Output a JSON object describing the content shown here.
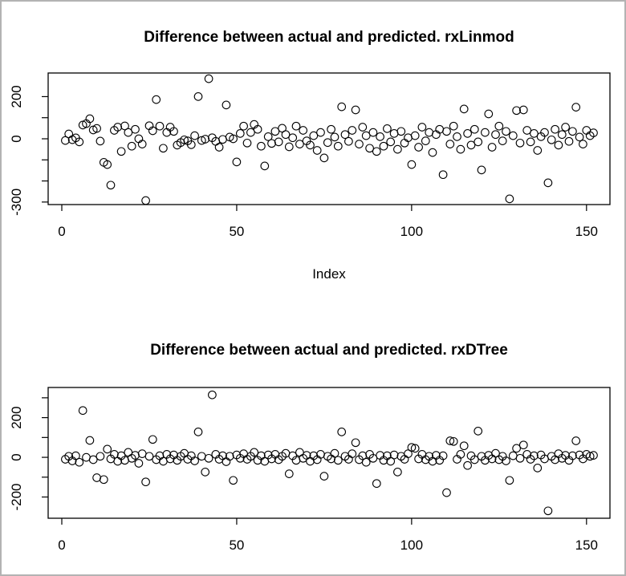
{
  "canvas": {
    "background": "#ffffff",
    "border_color": "#b3b3b3",
    "point_color": "#000000"
  },
  "chart_data": [
    {
      "type": "scatter",
      "title": "Difference between actual and predicted. rxLinmod",
      "xlabel": "Index",
      "ylabel": "",
      "marker": "open-circle",
      "grid": false,
      "legend": "none",
      "x_is_index": true,
      "xlim": [
        -3.9,
        156.7
      ],
      "ylim": [
        -312,
        312
      ],
      "xticks": [
        {
          "v": 0,
          "label": "0"
        },
        {
          "v": 50,
          "label": "50"
        },
        {
          "v": 100,
          "label": "100"
        },
        {
          "v": 150,
          "label": "150"
        }
      ],
      "yticks": [
        {
          "v": 200,
          "label": "200"
        },
        {
          "v": 100,
          "label": ""
        },
        {
          "v": 0,
          "label": "0"
        },
        {
          "v": -100,
          "label": ""
        },
        {
          "v": -200,
          "label": ""
        },
        {
          "v": -300,
          "label": "-300"
        }
      ],
      "y": [
        -8,
        23,
        -4,
        4,
        -15,
        65,
        72,
        95,
        42,
        49,
        -11,
        -112,
        -122,
        -220,
        40,
        55,
        -60,
        61,
        30,
        -35,
        45,
        0,
        -25,
        -293,
        62,
        38,
        186,
        60,
        -45,
        30,
        55,
        35,
        -30,
        -18,
        -5,
        -10,
        -28,
        15,
        200,
        -8,
        -2,
        285,
        5,
        -12,
        -40,
        -3,
        160,
        8,
        0,
        -110,
        25,
        60,
        -20,
        30,
        68,
        45,
        -35,
        -129,
        10,
        -22,
        35,
        -15,
        50,
        20,
        -38,
        5,
        60,
        -25,
        40,
        -10,
        -30,
        15,
        -55,
        30,
        -91,
        -18,
        45,
        8,
        -35,
        152,
        20,
        -12,
        40,
        137,
        -25,
        55,
        15,
        -45,
        30,
        -60,
        10,
        -35,
        48,
        -15,
        25,
        -50,
        35,
        -20,
        5,
        -122,
        15,
        -40,
        55,
        -10,
        30,
        -65,
        20,
        45,
        -170,
        35,
        -25,
        60,
        10,
        -50,
        141,
        25,
        -30,
        45,
        -15,
        -148,
        30,
        118,
        -40,
        20,
        60,
        -10,
        35,
        -285,
        15,
        134,
        -20,
        137,
        40,
        -15,
        25,
        -55,
        10,
        30,
        -209,
        -5,
        45,
        -30,
        20,
        55,
        -12,
        35,
        150,
        8,
        -25,
        40,
        15,
        28
      ]
    },
    {
      "type": "scatter",
      "title": "Difference between actual and predicted. rxDTree",
      "xlabel": "",
      "ylabel": "",
      "marker": "open-circle",
      "grid": false,
      "legend": "none",
      "x_is_index": true,
      "xlim": [
        -3.9,
        156.7
      ],
      "ylim": [
        -307,
        352
      ],
      "xticks": [
        {
          "v": 0,
          "label": "0"
        },
        {
          "v": 50,
          "label": "50"
        },
        {
          "v": 100,
          "label": "100"
        },
        {
          "v": 150,
          "label": "150"
        }
      ],
      "yticks": [
        {
          "v": 300,
          "label": ""
        },
        {
          "v": 200,
          "label": "200"
        },
        {
          "v": 100,
          "label": ""
        },
        {
          "v": 0,
          "label": "0"
        },
        {
          "v": -100,
          "label": ""
        },
        {
          "v": -200,
          "label": "-200"
        }
      ],
      "y": [
        -10,
        5,
        -18,
        8,
        -25,
        236,
        0,
        85,
        -12,
        -103,
        5,
        -112,
        41,
        -8,
        15,
        -20,
        8,
        -15,
        25,
        -5,
        10,
        -30,
        18,
        -124,
        5,
        90,
        -12,
        8,
        -20,
        15,
        -8,
        12,
        -15,
        5,
        20,
        -10,
        8,
        -18,
        128,
        5,
        -74,
        -5,
        315,
        15,
        -10,
        8,
        -22,
        5,
        -116,
        12,
        -5,
        18,
        -10,
        5,
        25,
        -15,
        8,
        -20,
        12,
        -8,
        15,
        -12,
        5,
        20,
        -83,
        8,
        -15,
        25,
        -5,
        10,
        -20,
        8,
        -12,
        15,
        -95,
        5,
        -8,
        20,
        -15,
        128,
        5,
        -10,
        18,
        74,
        -12,
        8,
        -25,
        15,
        -5,
        -132,
        10,
        -15,
        8,
        -20,
        12,
        -74,
        5,
        -10,
        18,
        50,
        45,
        -8,
        15,
        -12,
        5,
        -20,
        10,
        -15,
        8,
        -178,
        83,
        80,
        -10,
        15,
        58,
        -41,
        8,
        -12,
        132,
        5,
        -15,
        10,
        -8,
        20,
        -12,
        5,
        -18,
        -116,
        8,
        45,
        -5,
        62,
        15,
        -10,
        8,
        -54,
        12,
        -8,
        -270,
        5,
        -12,
        18,
        -5,
        10,
        -15,
        8,
        83,
        12,
        -8,
        15,
        5,
        10
      ]
    }
  ]
}
